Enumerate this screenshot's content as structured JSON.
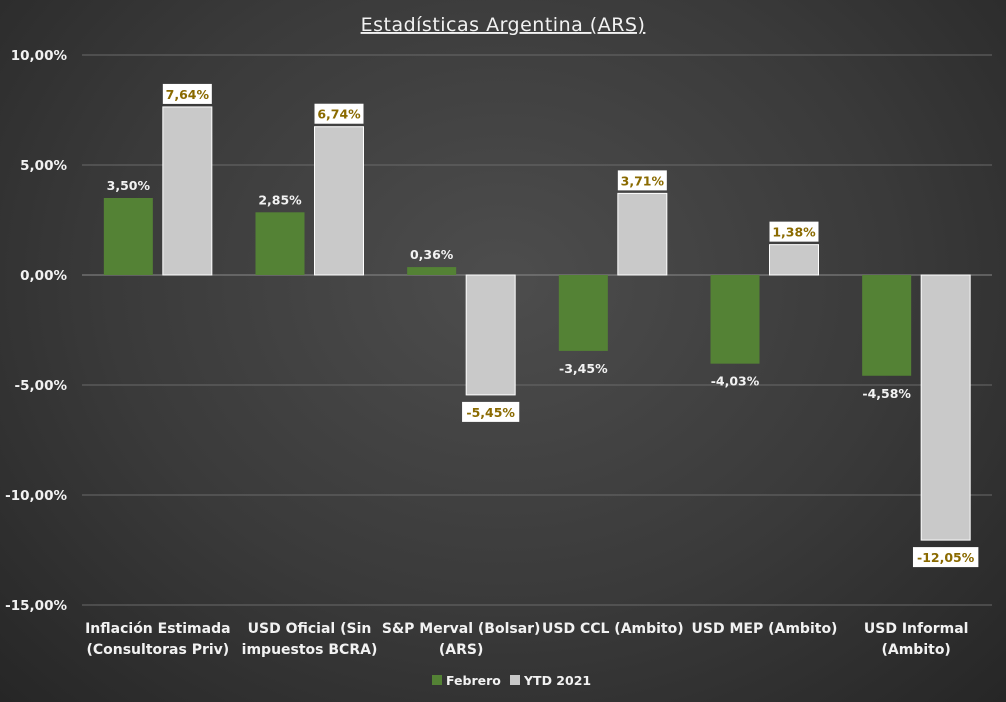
{
  "chart_data": {
    "type": "bar",
    "title": "Estadísticas Argentina (ARS)",
    "categories": [
      [
        "Inflación Estimada",
        "(Consultoras Priv)"
      ],
      [
        "USD Oficial (Sin",
        "impuestos BCRA)"
      ],
      [
        "S&P Merval (Bolsar)",
        "(ARS)"
      ],
      [
        "USD CCL (Ambito)"
      ],
      [
        "USD MEP (Ambito)"
      ],
      [
        "USD Informal",
        "(Ambito)"
      ]
    ],
    "series": [
      {
        "name": "Febrero",
        "color": "#548235",
        "values": [
          3.5,
          2.85,
          0.36,
          -3.45,
          -4.03,
          -4.58
        ],
        "labels": [
          "3,50%",
          "2,85%",
          "0,36%",
          "-3,45%",
          "-4,03%",
          "-4,58%"
        ]
      },
      {
        "name": "YTD 2021",
        "color": "#c9c9c9",
        "values": [
          7.64,
          6.74,
          -5.45,
          3.71,
          1.38,
          -12.05
        ],
        "labels": [
          "7,64%",
          "6,74%",
          "-5,45%",
          "3,71%",
          "1,38%",
          "-12,05%"
        ]
      }
    ],
    "yticks": [
      {
        "v": 10,
        "label": "10,00%"
      },
      {
        "v": 5,
        "label": "5,00%"
      },
      {
        "v": 0,
        "label": "0,00%"
      },
      {
        "v": -5,
        "label": "-5,00%"
      },
      {
        "v": -10,
        "label": "-10,00%"
      },
      {
        "v": -15,
        "label": "-15,00%"
      }
    ],
    "ylim": [
      -15,
      10
    ],
    "grid": true,
    "legend": "bottom-center"
  }
}
